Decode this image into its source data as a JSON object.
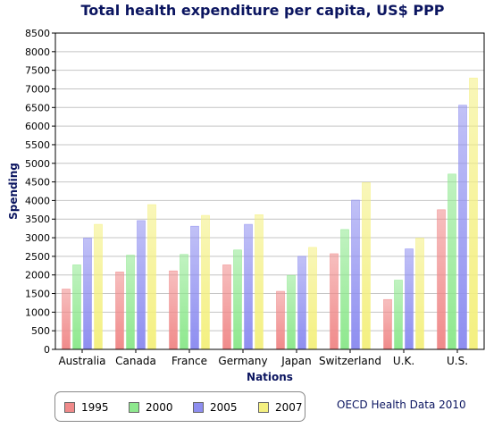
{
  "chart_data": {
    "type": "bar",
    "title": "Total health expenditure per capita, US$ PPP",
    "xlabel": "Nations",
    "ylabel": "Spending",
    "ylim": [
      0,
      8500
    ],
    "ytick_step": 500,
    "grid": true,
    "legend_position": "bottom-left",
    "categories": [
      "Australia",
      "Canada",
      "France",
      "Germany",
      "Japan",
      "Switzerland",
      "U.K.",
      "U.S."
    ],
    "series": [
      {
        "name": "1995",
        "color": "#f08a8a",
        "values": [
          1620,
          2080,
          2110,
          2270,
          1560,
          2570,
          1340,
          3750
        ]
      },
      {
        "name": "2000",
        "color": "#8ee88e",
        "values": [
          2270,
          2530,
          2550,
          2670,
          1990,
          3220,
          1860,
          4710
        ]
      },
      {
        "name": "2005",
        "color": "#8e8ef0",
        "values": [
          2990,
          3460,
          3310,
          3360,
          2500,
          4010,
          2700,
          6560
        ]
      },
      {
        "name": "2007",
        "color": "#f4f080",
        "values": [
          3360,
          3890,
          3600,
          3620,
          2740,
          4480,
          2990,
          7290
        ]
      }
    ]
  },
  "source_note": "OECD Health Data 2010"
}
